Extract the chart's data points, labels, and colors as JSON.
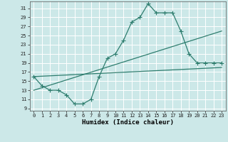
{
  "xlabel": "Humidex (Indice chaleur)",
  "bg_color": "#cce8e8",
  "grid_color": "#ffffff",
  "line_color": "#2e7d6e",
  "xlim": [
    -0.5,
    23.5
  ],
  "ylim": [
    8.5,
    32.5
  ],
  "xticks": [
    0,
    1,
    2,
    3,
    4,
    5,
    6,
    7,
    8,
    9,
    10,
    11,
    12,
    13,
    14,
    15,
    16,
    17,
    18,
    19,
    20,
    21,
    22,
    23
  ],
  "yticks": [
    9,
    11,
    13,
    15,
    17,
    19,
    21,
    23,
    25,
    27,
    29,
    31
  ],
  "curve1_x": [
    0,
    1,
    2,
    3,
    4,
    5,
    6,
    7,
    8,
    9,
    10,
    11,
    12,
    13,
    14,
    15,
    16,
    17,
    18,
    19,
    20,
    21,
    22,
    23
  ],
  "curve1_y": [
    16,
    14,
    13,
    13,
    12,
    10,
    10,
    11,
    16,
    20,
    21,
    24,
    28,
    29,
    32,
    30,
    30,
    30,
    26,
    21,
    19,
    19,
    19,
    19
  ],
  "curve2_x": [
    0,
    23
  ],
  "curve2_y": [
    16,
    18
  ],
  "curve3_x": [
    0,
    23
  ],
  "curve3_y": [
    13,
    26
  ],
  "marker_size": 2.2,
  "line_width": 0.9,
  "tick_fontsize": 5.0,
  "xlabel_fontsize": 6.5
}
